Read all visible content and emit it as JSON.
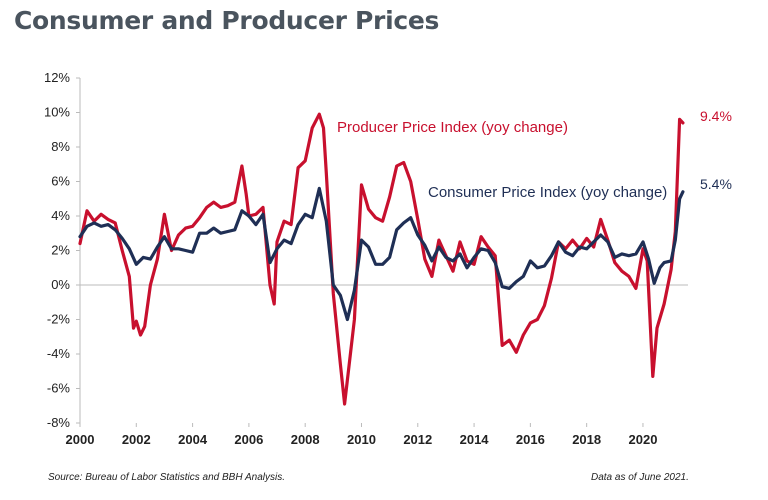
{
  "header": {
    "title": "Consumer and Producer Prices"
  },
  "footer": {
    "source": "Source: Bureau of Labor Statistics and BBH Analysis.",
    "as_of": "Data as of June 2021."
  },
  "colors": {
    "ppi": "#c8102e",
    "cpi": "#1f2f55",
    "axis": "#bbbbbb"
  },
  "chart_data": {
    "type": "line",
    "title": "Consumer and Producer Prices",
    "xlabel": "",
    "ylabel": "",
    "xlim": [
      2000,
      2021.6
    ],
    "ylim": [
      -8,
      12
    ],
    "grid": false,
    "y_ticks": [
      12,
      10,
      8,
      6,
      4,
      2,
      0,
      -2,
      -4,
      -6,
      -8
    ],
    "y_tick_labels": [
      "12%",
      "10%",
      "8%",
      "6%",
      "4%",
      "2%",
      "0%",
      "-2%",
      "-4%",
      "-6%",
      "-8%"
    ],
    "x_ticks": [
      2000,
      2002,
      2004,
      2006,
      2008,
      2010,
      2012,
      2014,
      2016,
      2018,
      2020
    ],
    "x_tick_labels": [
      "2000",
      "2002",
      "2004",
      "2006",
      "2008",
      "2010",
      "2012",
      "2014",
      "2016",
      "2018",
      "2020"
    ],
    "series": [
      {
        "name": "Producer Price Index (yoy change)",
        "label": "Producer Price Index (yoy change)",
        "end_label": "9.4%",
        "color": "#c8102e",
        "x": [
          2000.0,
          2000.25,
          2000.5,
          2000.75,
          2001.0,
          2001.25,
          2001.5,
          2001.75,
          2001.9,
          2002.0,
          2002.15,
          2002.3,
          2002.5,
          2002.75,
          2003.0,
          2003.25,
          2003.5,
          2003.75,
          2004.0,
          2004.25,
          2004.5,
          2004.75,
          2005.0,
          2005.25,
          2005.5,
          2005.75,
          2005.9,
          2006.0,
          2006.25,
          2006.5,
          2006.75,
          2006.9,
          2007.0,
          2007.25,
          2007.5,
          2007.75,
          2008.0,
          2008.25,
          2008.5,
          2008.65,
          2008.75,
          2009.0,
          2009.25,
          2009.4,
          2009.55,
          2009.75,
          2010.0,
          2010.25,
          2010.5,
          2010.75,
          2011.0,
          2011.25,
          2011.5,
          2011.75,
          2012.0,
          2012.25,
          2012.5,
          2012.75,
          2013.0,
          2013.25,
          2013.5,
          2013.75,
          2014.0,
          2014.25,
          2014.5,
          2014.75,
          2015.0,
          2015.25,
          2015.5,
          2015.75,
          2016.0,
          2016.25,
          2016.5,
          2016.75,
          2017.0,
          2017.25,
          2017.5,
          2017.75,
          2018.0,
          2018.25,
          2018.5,
          2018.75,
          2019.0,
          2019.25,
          2019.5,
          2019.75,
          2020.0,
          2020.15,
          2020.35,
          2020.5,
          2020.75,
          2021.0,
          2021.15,
          2021.3,
          2021.42
        ],
        "y": [
          2.4,
          4.3,
          3.7,
          4.1,
          3.8,
          3.6,
          2.0,
          0.5,
          -2.5,
          -2.1,
          -2.9,
          -2.4,
          0.0,
          1.5,
          4.1,
          2.0,
          2.9,
          3.3,
          3.4,
          3.9,
          4.5,
          4.8,
          4.5,
          4.6,
          4.8,
          6.9,
          5.3,
          4.0,
          4.1,
          4.5,
          0.0,
          -1.1,
          2.5,
          3.7,
          3.5,
          6.8,
          7.2,
          9.1,
          9.9,
          9.1,
          6.5,
          -0.5,
          -4.6,
          -6.9,
          -4.8,
          -2.0,
          5.8,
          4.4,
          3.9,
          3.7,
          5.1,
          6.9,
          7.1,
          6.0,
          3.8,
          1.5,
          0.5,
          2.6,
          1.7,
          0.8,
          2.5,
          1.4,
          1.2,
          2.8,
          2.2,
          1.7,
          -3.5,
          -3.2,
          -3.9,
          -2.9,
          -2.2,
          -2.0,
          -1.2,
          0.4,
          2.5,
          2.1,
          2.6,
          2.1,
          2.7,
          2.2,
          3.8,
          2.6,
          1.3,
          0.8,
          0.5,
          -0.2,
          2.1,
          1.4,
          -5.3,
          -2.5,
          -1.1,
          0.9,
          3.1,
          9.6,
          9.4
        ]
      },
      {
        "name": "Consumer Price Index (yoy change)",
        "label": "Consumer Price Index (yoy change)",
        "end_label": "5.4%",
        "color": "#1f2f55",
        "x": [
          2000.0,
          2000.25,
          2000.5,
          2000.75,
          2001.0,
          2001.25,
          2001.5,
          2001.75,
          2002.0,
          2002.25,
          2002.5,
          2002.75,
          2003.0,
          2003.25,
          2003.5,
          2003.75,
          2004.0,
          2004.25,
          2004.5,
          2004.75,
          2005.0,
          2005.25,
          2005.5,
          2005.75,
          2006.0,
          2006.25,
          2006.5,
          2006.75,
          2007.0,
          2007.25,
          2007.5,
          2007.75,
          2008.0,
          2008.25,
          2008.5,
          2008.75,
          2009.0,
          2009.25,
          2009.5,
          2009.75,
          2010.0,
          2010.25,
          2010.5,
          2010.75,
          2011.0,
          2011.25,
          2011.5,
          2011.75,
          2012.0,
          2012.25,
          2012.5,
          2012.75,
          2013.0,
          2013.25,
          2013.5,
          2013.75,
          2014.0,
          2014.25,
          2014.5,
          2014.75,
          2015.0,
          2015.25,
          2015.5,
          2015.75,
          2016.0,
          2016.25,
          2016.5,
          2016.75,
          2017.0,
          2017.25,
          2017.5,
          2017.75,
          2018.0,
          2018.25,
          2018.5,
          2018.75,
          2019.0,
          2019.25,
          2019.5,
          2019.75,
          2020.0,
          2020.2,
          2020.4,
          2020.6,
          2020.75,
          2021.0,
          2021.15,
          2021.3,
          2021.42
        ],
        "y": [
          2.8,
          3.4,
          3.6,
          3.4,
          3.5,
          3.2,
          2.7,
          2.1,
          1.2,
          1.6,
          1.5,
          2.2,
          2.8,
          2.1,
          2.1,
          2.0,
          1.9,
          3.0,
          3.0,
          3.3,
          3.0,
          3.1,
          3.2,
          4.3,
          4.0,
          3.5,
          4.1,
          1.3,
          2.1,
          2.6,
          2.4,
          3.5,
          4.1,
          3.9,
          5.6,
          3.7,
          0.0,
          -0.6,
          -2.0,
          -0.3,
          2.6,
          2.2,
          1.2,
          1.2,
          1.6,
          3.2,
          3.6,
          3.9,
          2.9,
          2.3,
          1.4,
          2.2,
          1.6,
          1.4,
          1.8,
          1.0,
          1.6,
          2.1,
          2.0,
          1.3,
          -0.1,
          -0.2,
          0.2,
          0.5,
          1.4,
          1.0,
          1.1,
          1.7,
          2.5,
          1.9,
          1.7,
          2.2,
          2.1,
          2.5,
          2.9,
          2.5,
          1.6,
          1.8,
          1.7,
          1.8,
          2.5,
          1.5,
          0.1,
          1.0,
          1.3,
          1.4,
          2.6,
          5.0,
          5.4
        ]
      }
    ]
  }
}
